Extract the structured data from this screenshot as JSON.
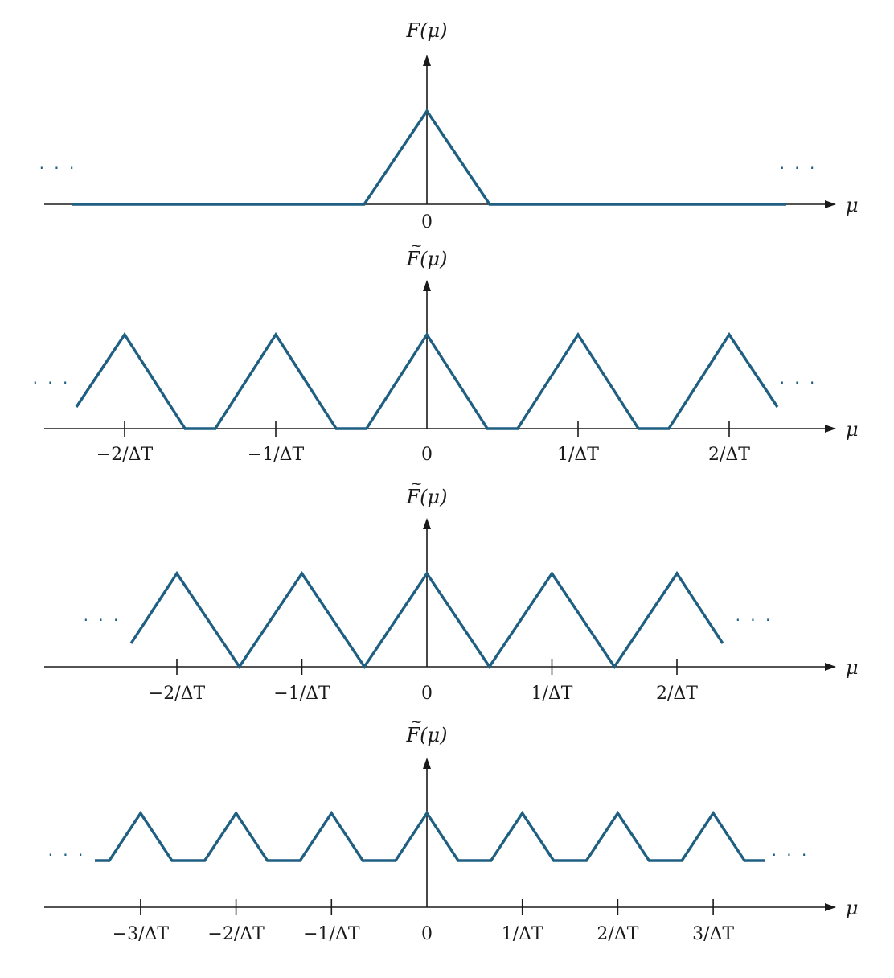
{
  "panels": [
    {
      "y_label": "F(μ)",
      "tilde": false,
      "x_label": "μ",
      "origin_label": "0",
      "period": null,
      "halfwidth": 0.4,
      "peak": 1.0,
      "extent": 2.35,
      "ticks": [],
      "dots": "· · ·"
    },
    {
      "y_label": "F(μ)",
      "tilde": true,
      "x_label": "μ",
      "origin_label": "0",
      "period": 1,
      "halfwidth": 0.4,
      "peak": 1.0,
      "extent": 2.3,
      "ticks": [
        {
          "value": -2,
          "label": "−2/ΔT"
        },
        {
          "value": -1,
          "label": "−1/ΔT"
        },
        {
          "value": 1,
          "label": "1/ΔT"
        },
        {
          "value": 2,
          "label": "2/ΔT"
        }
      ],
      "dots": "· · ·"
    },
    {
      "y_label": "F(μ)",
      "tilde": true,
      "x_label": "μ",
      "origin_label": "0",
      "period": 0.5,
      "halfwidth": 0.25,
      "peak": 1.0,
      "extent": 1.18,
      "ticks": [
        {
          "value": -2,
          "label": "−2/ΔT"
        },
        {
          "value": -1,
          "label": "−1/ΔT"
        },
        {
          "value": 1,
          "label": "1/ΔT"
        },
        {
          "value": 2,
          "label": "2/ΔT"
        }
      ],
      "dots": "· · ·"
    },
    {
      "y_label": "F(μ)",
      "tilde": true,
      "x_label": "μ",
      "origin_label": "0",
      "period": 1,
      "halfwidth": 0.33,
      "peak": 1.0,
      "extent": 3.5,
      "ticks": [
        {
          "value": -3,
          "label": "−3/ΔT"
        },
        {
          "value": -2,
          "label": "−2/ΔT"
        },
        {
          "value": -1,
          "label": "−1/ΔT"
        },
        {
          "value": 1,
          "label": "1/ΔT"
        },
        {
          "value": 2,
          "label": "2/ΔT"
        },
        {
          "value": 3,
          "label": "3/ΔT"
        }
      ],
      "dots": "· · ·"
    }
  ],
  "colors": {
    "curve": "#1f5f82",
    "axis": "#1a1a1a"
  }
}
